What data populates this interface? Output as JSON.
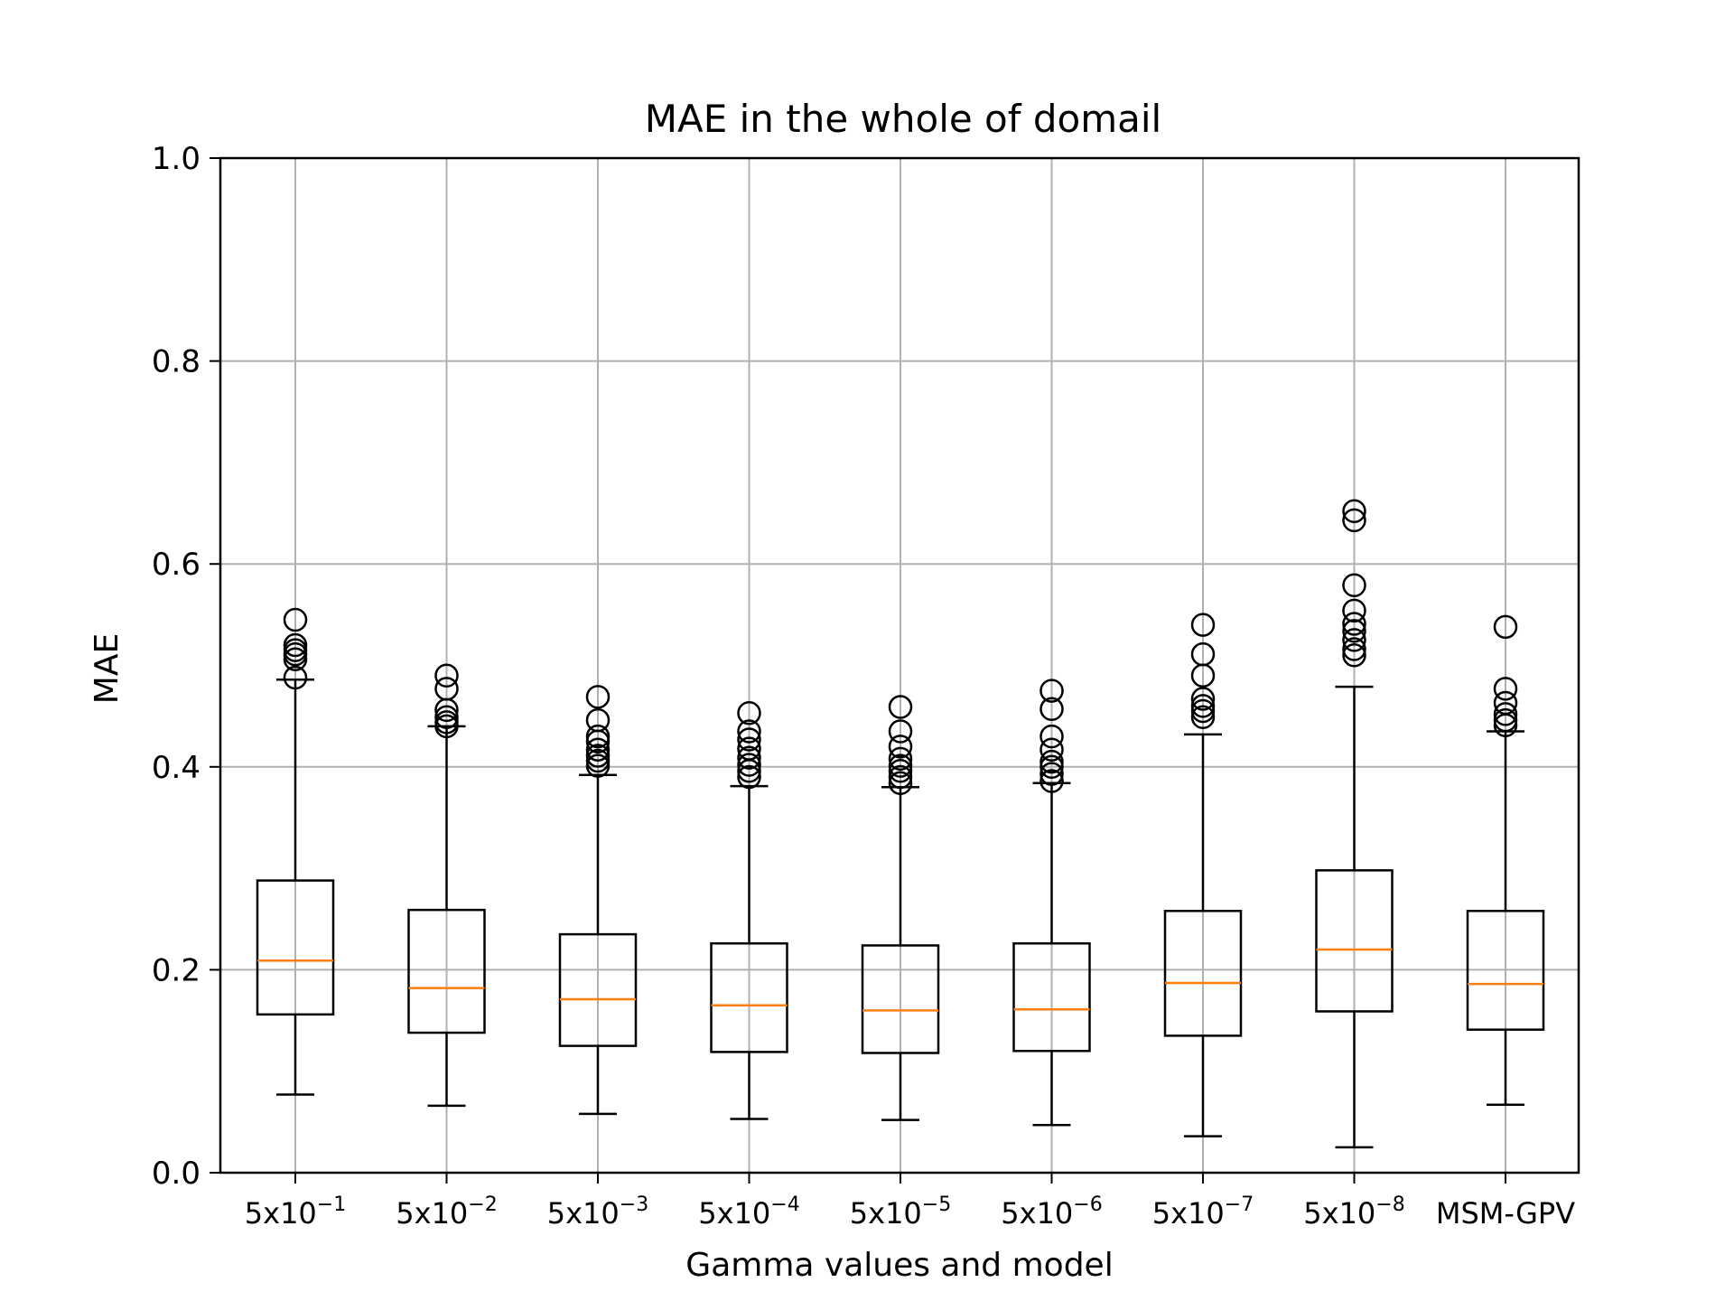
{
  "chart_data": {
    "type": "box",
    "title": "MAE in the whole of domail",
    "xlabel": "Gamma values and model",
    "ylabel": "MAE",
    "ylim": [
      0,
      1
    ],
    "yticks": [
      "0.0",
      "0.2",
      "0.4",
      "0.6",
      "0.8",
      "1.0"
    ],
    "grid": true,
    "categories": [
      {
        "base": "5x10",
        "exp": "−1"
      },
      {
        "base": "5x10",
        "exp": "−2"
      },
      {
        "base": "5x10",
        "exp": "−3"
      },
      {
        "base": "5x10",
        "exp": "−4"
      },
      {
        "base": "5x10",
        "exp": "−5"
      },
      {
        "base": "5x10",
        "exp": "−6"
      },
      {
        "base": "5x10",
        "exp": "−7"
      },
      {
        "base": "5x10",
        "exp": "−8"
      },
      {
        "base": "MSM-GPV",
        "exp": ""
      }
    ],
    "boxes": [
      {
        "whisker_low": 0.077,
        "q1": 0.156,
        "median": 0.209,
        "q3": 0.288,
        "whisker_high": 0.486,
        "outliers": [
          0.488,
          0.506,
          0.511,
          0.515,
          0.52,
          0.545
        ]
      },
      {
        "whisker_low": 0.066,
        "q1": 0.138,
        "median": 0.182,
        "q3": 0.259,
        "whisker_high": 0.44,
        "outliers": [
          0.44,
          0.444,
          0.449,
          0.456,
          0.477,
          0.49
        ]
      },
      {
        "whisker_low": 0.058,
        "q1": 0.125,
        "median": 0.171,
        "q3": 0.235,
        "whisker_high": 0.392,
        "outliers": [
          0.401,
          0.406,
          0.411,
          0.417,
          0.425,
          0.43,
          0.446,
          0.469
        ]
      },
      {
        "whisker_low": 0.053,
        "q1": 0.119,
        "median": 0.165,
        "q3": 0.226,
        "whisker_high": 0.381,
        "outliers": [
          0.39,
          0.396,
          0.402,
          0.409,
          0.418,
          0.427,
          0.435,
          0.453
        ]
      },
      {
        "whisker_low": 0.052,
        "q1": 0.118,
        "median": 0.16,
        "q3": 0.224,
        "whisker_high": 0.38,
        "outliers": [
          0.384,
          0.39,
          0.396,
          0.401,
          0.408,
          0.42,
          0.435,
          0.459
        ]
      },
      {
        "whisker_low": 0.047,
        "q1": 0.12,
        "median": 0.161,
        "q3": 0.226,
        "whisker_high": 0.384,
        "outliers": [
          0.386,
          0.393,
          0.4,
          0.405,
          0.417,
          0.43,
          0.457,
          0.475
        ]
      },
      {
        "whisker_low": 0.036,
        "q1": 0.135,
        "median": 0.187,
        "q3": 0.258,
        "whisker_high": 0.432,
        "outliers": [
          0.449,
          0.455,
          0.46,
          0.467,
          0.49,
          0.511,
          0.54
        ]
      },
      {
        "whisker_low": 0.025,
        "q1": 0.159,
        "median": 0.22,
        "q3": 0.298,
        "whisker_high": 0.479,
        "outliers": [
          0.51,
          0.516,
          0.525,
          0.534,
          0.541,
          0.554,
          0.579,
          0.643,
          0.652
        ]
      },
      {
        "whisker_low": 0.067,
        "q1": 0.141,
        "median": 0.186,
        "q3": 0.258,
        "whisker_high": 0.435,
        "outliers": [
          0.441,
          0.446,
          0.452,
          0.463,
          0.477,
          0.538
        ]
      }
    ],
    "colors": {
      "box": "#000000",
      "median": "#ff7f0e",
      "grid": "#b0b0b0"
    }
  }
}
